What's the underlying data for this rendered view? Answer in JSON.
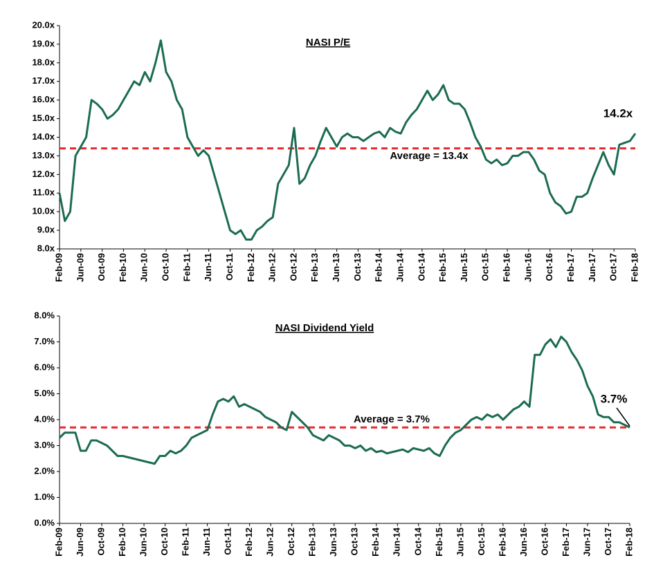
{
  "chart_data": [
    {
      "type": "line",
      "title": "NASI P/E",
      "xlim": [
        0,
        108
      ],
      "xticks": [
        {
          "value": 0,
          "label": "Feb-09"
        },
        {
          "value": 4,
          "label": "Jun-09"
        },
        {
          "value": 8,
          "label": "Oct-09"
        },
        {
          "value": 12,
          "label": "Feb-10"
        },
        {
          "value": 16,
          "label": "Jun-10"
        },
        {
          "value": 20,
          "label": "Oct-10"
        },
        {
          "value": 24,
          "label": "Feb-11"
        },
        {
          "value": 28,
          "label": "Jun-11"
        },
        {
          "value": 32,
          "label": "Oct-11"
        },
        {
          "value": 36,
          "label": "Feb-12"
        },
        {
          "value": 40,
          "label": "Jun-12"
        },
        {
          "value": 44,
          "label": "Oct-12"
        },
        {
          "value": 48,
          "label": "Feb-13"
        },
        {
          "value": 52,
          "label": "Jun-13"
        },
        {
          "value": 56,
          "label": "Oct-13"
        },
        {
          "value": 60,
          "label": "Feb-14"
        },
        {
          "value": 64,
          "label": "Jun-14"
        },
        {
          "value": 68,
          "label": "Oct-14"
        },
        {
          "value": 72,
          "label": "Feb-15"
        },
        {
          "value": 76,
          "label": "Jun-15"
        },
        {
          "value": 80,
          "label": "Oct-15"
        },
        {
          "value": 84,
          "label": "Feb-16"
        },
        {
          "value": 88,
          "label": "Jun-16"
        },
        {
          "value": 92,
          "label": "Oct-16"
        },
        {
          "value": 96,
          "label": "Feb-17"
        },
        {
          "value": 100,
          "label": "Jun-17"
        },
        {
          "value": 104,
          "label": "Oct-17"
        },
        {
          "value": 108,
          "label": "Feb-18"
        }
      ],
      "ylim": [
        8,
        20
      ],
      "yticks": [
        {
          "value": 8,
          "label": "8.0x"
        },
        {
          "value": 9,
          "label": "9.0x"
        },
        {
          "value": 10,
          "label": "10.0x"
        },
        {
          "value": 11,
          "label": "11.0x"
        },
        {
          "value": 12,
          "label": "12.0x"
        },
        {
          "value": 13,
          "label": "13.0x"
        },
        {
          "value": 14,
          "label": "14.0x"
        },
        {
          "value": 15,
          "label": "15.0x"
        },
        {
          "value": 16,
          "label": "16.0x"
        },
        {
          "value": 17,
          "label": "17.0x"
        },
        {
          "value": 18,
          "label": "18.0x"
        },
        {
          "value": 19,
          "label": "19.0x"
        },
        {
          "value": 20,
          "label": "20.0x"
        }
      ],
      "series": [
        {
          "color": "#1b6b52",
          "values": [
            11.0,
            9.5,
            10.0,
            13.0,
            13.5,
            14.0,
            16.0,
            15.8,
            15.5,
            15.0,
            15.2,
            15.5,
            16.0,
            16.5,
            17.0,
            16.8,
            17.5,
            17.0,
            18.0,
            19.2,
            17.5,
            17.0,
            16.0,
            15.5,
            14.0,
            13.5,
            13.0,
            13.3,
            13.0,
            12.0,
            11.0,
            10.0,
            9.0,
            8.8,
            9.0,
            8.5,
            8.5,
            9.0,
            9.2,
            9.5,
            9.7,
            11.5,
            12.0,
            12.5,
            14.5,
            11.5,
            11.8,
            12.5,
            13.0,
            13.8,
            14.5,
            14.0,
            13.5,
            14.0,
            14.2,
            14.0,
            14.0,
            13.8,
            14.0,
            14.2,
            14.3,
            14.0,
            14.5,
            14.3,
            14.2,
            14.8,
            15.2,
            15.5,
            16.0,
            16.5,
            16.0,
            16.3,
            16.8,
            16.0,
            15.8,
            15.8,
            15.5,
            14.8,
            14.0,
            13.5,
            12.8,
            12.6,
            12.8,
            12.5,
            12.6,
            13.0,
            13.0,
            13.2,
            13.2,
            12.8,
            12.2,
            12.0,
            11.0,
            10.5,
            10.3,
            9.9,
            10.0,
            10.8,
            10.8,
            11.0,
            11.8,
            12.5,
            13.2,
            12.5,
            12.0,
            13.6,
            13.7,
            13.8,
            14.2
          ]
        }
      ],
      "average": {
        "value": 13.4,
        "label": "Average = 13.4x",
        "color": "#e8282e"
      },
      "end_label": "14.2x"
    },
    {
      "type": "line",
      "title": "NASI Dividend Yield",
      "xlim": [
        0,
        108
      ],
      "xticks": [
        {
          "value": 0,
          "label": "Feb-09"
        },
        {
          "value": 4,
          "label": "Jun-09"
        },
        {
          "value": 8,
          "label": "Oct-09"
        },
        {
          "value": 12,
          "label": "Feb-10"
        },
        {
          "value": 16,
          "label": "Jun-10"
        },
        {
          "value": 20,
          "label": "Oct-10"
        },
        {
          "value": 24,
          "label": "Feb-11"
        },
        {
          "value": 28,
          "label": "Jun-11"
        },
        {
          "value": 32,
          "label": "Oct-11"
        },
        {
          "value": 36,
          "label": "Feb-12"
        },
        {
          "value": 40,
          "label": "Jun-12"
        },
        {
          "value": 44,
          "label": "Oct-12"
        },
        {
          "value": 48,
          "label": "Feb-13"
        },
        {
          "value": 52,
          "label": "Jun-13"
        },
        {
          "value": 56,
          "label": "Oct-13"
        },
        {
          "value": 60,
          "label": "Feb-14"
        },
        {
          "value": 64,
          "label": "Jun-14"
        },
        {
          "value": 68,
          "label": "Oct-14"
        },
        {
          "value": 72,
          "label": "Feb-15"
        },
        {
          "value": 76,
          "label": "Jun-15"
        },
        {
          "value": 80,
          "label": "Oct-15"
        },
        {
          "value": 84,
          "label": "Feb-16"
        },
        {
          "value": 88,
          "label": "Jun-16"
        },
        {
          "value": 92,
          "label": "Oct-16"
        },
        {
          "value": 96,
          "label": "Feb-17"
        },
        {
          "value": 100,
          "label": "Jun-17"
        },
        {
          "value": 104,
          "label": "Oct-17"
        },
        {
          "value": 108,
          "label": "Feb-18"
        }
      ],
      "ylim": [
        0,
        8
      ],
      "yticks": [
        {
          "value": 0,
          "label": "0.0%"
        },
        {
          "value": 1,
          "label": "1.0%"
        },
        {
          "value": 2,
          "label": "2.0%"
        },
        {
          "value": 3,
          "label": "3.0%"
        },
        {
          "value": 4,
          "label": "4.0%"
        },
        {
          "value": 5,
          "label": "5.0%"
        },
        {
          "value": 6,
          "label": "6.0%"
        },
        {
          "value": 7,
          "label": "7.0%"
        },
        {
          "value": 8,
          "label": "8.0%"
        }
      ],
      "series": [
        {
          "color": "#1b6b52",
          "values": [
            3.3,
            3.5,
            3.5,
            3.5,
            2.8,
            2.8,
            3.2,
            3.2,
            3.1,
            3.0,
            2.8,
            2.6,
            2.6,
            2.55,
            2.5,
            2.45,
            2.4,
            2.35,
            2.3,
            2.6,
            2.6,
            2.8,
            2.7,
            2.8,
            3.0,
            3.3,
            3.4,
            3.5,
            3.6,
            4.2,
            4.7,
            4.8,
            4.7,
            4.9,
            4.5,
            4.6,
            4.5,
            4.4,
            4.3,
            4.1,
            4.0,
            3.9,
            3.7,
            3.6,
            4.3,
            4.1,
            3.9,
            3.7,
            3.4,
            3.3,
            3.2,
            3.4,
            3.3,
            3.2,
            3.0,
            3.0,
            2.9,
            3.0,
            2.8,
            2.9,
            2.75,
            2.8,
            2.7,
            2.75,
            2.8,
            2.85,
            2.75,
            2.9,
            2.85,
            2.8,
            2.9,
            2.7,
            2.6,
            3.0,
            3.3,
            3.5,
            3.6,
            3.8,
            4.0,
            4.1,
            4.0,
            4.2,
            4.1,
            4.2,
            4.0,
            4.2,
            4.4,
            4.5,
            4.7,
            4.5,
            6.5,
            6.5,
            6.9,
            7.1,
            6.8,
            7.2,
            7.0,
            6.6,
            6.3,
            5.9,
            5.3,
            4.9,
            4.2,
            4.1,
            4.1,
            3.9,
            3.9,
            3.8,
            3.7
          ]
        }
      ],
      "average": {
        "value": 3.7,
        "label": "Average = 3.7%",
        "color": "#e8282e"
      },
      "end_label": "3.7%"
    }
  ]
}
